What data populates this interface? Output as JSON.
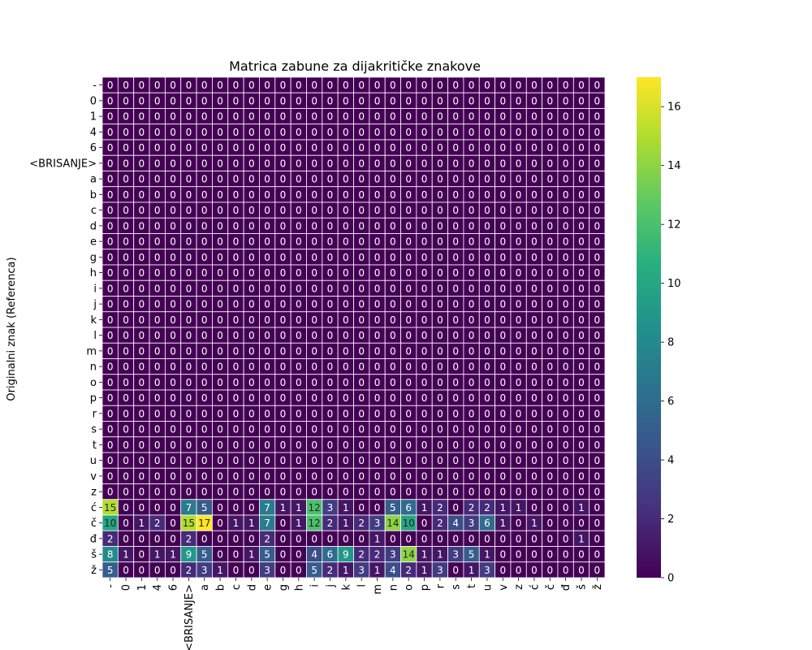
{
  "chart_data": {
    "type": "heatmap",
    "title": "Matrica zabune za dijakritičke znakove",
    "ylabel": "Originalni znak (Referenca)",
    "xlabel": "",
    "row_labels": [
      "-",
      "0",
      "1",
      "4",
      "6",
      "<BRISANJE>",
      "a",
      "b",
      "c",
      "d",
      "e",
      "g",
      "h",
      "i",
      "j",
      "k",
      "l",
      "m",
      "n",
      "o",
      "p",
      "r",
      "s",
      "t",
      "u",
      "v",
      "z",
      "ć",
      "č",
      "đ",
      "š",
      "ž"
    ],
    "col_labels": [
      "-",
      "0",
      "1",
      "4",
      "6",
      "<BRISANJE>",
      "a",
      "b",
      "c",
      "d",
      "e",
      "g",
      "h",
      "i",
      "j",
      "k",
      "l",
      "m",
      "n",
      "o",
      "p",
      "r",
      "s",
      "t",
      "u",
      "v",
      "z",
      "ć",
      "č",
      "đ",
      "š",
      "ž"
    ],
    "matrix": [
      [
        0,
        0,
        0,
        0,
        0,
        0,
        0,
        0,
        0,
        0,
        0,
        0,
        0,
        0,
        0,
        0,
        0,
        0,
        0,
        0,
        0,
        0,
        0,
        0,
        0,
        0,
        0,
        0,
        0,
        0,
        0,
        0
      ],
      [
        0,
        0,
        0,
        0,
        0,
        0,
        0,
        0,
        0,
        0,
        0,
        0,
        0,
        0,
        0,
        0,
        0,
        0,
        0,
        0,
        0,
        0,
        0,
        0,
        0,
        0,
        0,
        0,
        0,
        0,
        0,
        0
      ],
      [
        0,
        0,
        0,
        0,
        0,
        0,
        0,
        0,
        0,
        0,
        0,
        0,
        0,
        0,
        0,
        0,
        0,
        0,
        0,
        0,
        0,
        0,
        0,
        0,
        0,
        0,
        0,
        0,
        0,
        0,
        0,
        0
      ],
      [
        0,
        0,
        0,
        0,
        0,
        0,
        0,
        0,
        0,
        0,
        0,
        0,
        0,
        0,
        0,
        0,
        0,
        0,
        0,
        0,
        0,
        0,
        0,
        0,
        0,
        0,
        0,
        0,
        0,
        0,
        0,
        0
      ],
      [
        0,
        0,
        0,
        0,
        0,
        0,
        0,
        0,
        0,
        0,
        0,
        0,
        0,
        0,
        0,
        0,
        0,
        0,
        0,
        0,
        0,
        0,
        0,
        0,
        0,
        0,
        0,
        0,
        0,
        0,
        0,
        0
      ],
      [
        0,
        0,
        0,
        0,
        0,
        0,
        0,
        0,
        0,
        0,
        0,
        0,
        0,
        0,
        0,
        0,
        0,
        0,
        0,
        0,
        0,
        0,
        0,
        0,
        0,
        0,
        0,
        0,
        0,
        0,
        0,
        0
      ],
      [
        0,
        0,
        0,
        0,
        0,
        0,
        0,
        0,
        0,
        0,
        0,
        0,
        0,
        0,
        0,
        0,
        0,
        0,
        0,
        0,
        0,
        0,
        0,
        0,
        0,
        0,
        0,
        0,
        0,
        0,
        0,
        0
      ],
      [
        0,
        0,
        0,
        0,
        0,
        0,
        0,
        0,
        0,
        0,
        0,
        0,
        0,
        0,
        0,
        0,
        0,
        0,
        0,
        0,
        0,
        0,
        0,
        0,
        0,
        0,
        0,
        0,
        0,
        0,
        0,
        0
      ],
      [
        0,
        0,
        0,
        0,
        0,
        0,
        0,
        0,
        0,
        0,
        0,
        0,
        0,
        0,
        0,
        0,
        0,
        0,
        0,
        0,
        0,
        0,
        0,
        0,
        0,
        0,
        0,
        0,
        0,
        0,
        0,
        0
      ],
      [
        0,
        0,
        0,
        0,
        0,
        0,
        0,
        0,
        0,
        0,
        0,
        0,
        0,
        0,
        0,
        0,
        0,
        0,
        0,
        0,
        0,
        0,
        0,
        0,
        0,
        0,
        0,
        0,
        0,
        0,
        0,
        0
      ],
      [
        0,
        0,
        0,
        0,
        0,
        0,
        0,
        0,
        0,
        0,
        0,
        0,
        0,
        0,
        0,
        0,
        0,
        0,
        0,
        0,
        0,
        0,
        0,
        0,
        0,
        0,
        0,
        0,
        0,
        0,
        0,
        0
      ],
      [
        0,
        0,
        0,
        0,
        0,
        0,
        0,
        0,
        0,
        0,
        0,
        0,
        0,
        0,
        0,
        0,
        0,
        0,
        0,
        0,
        0,
        0,
        0,
        0,
        0,
        0,
        0,
        0,
        0,
        0,
        0,
        0
      ],
      [
        0,
        0,
        0,
        0,
        0,
        0,
        0,
        0,
        0,
        0,
        0,
        0,
        0,
        0,
        0,
        0,
        0,
        0,
        0,
        0,
        0,
        0,
        0,
        0,
        0,
        0,
        0,
        0,
        0,
        0,
        0,
        0
      ],
      [
        0,
        0,
        0,
        0,
        0,
        0,
        0,
        0,
        0,
        0,
        0,
        0,
        0,
        0,
        0,
        0,
        0,
        0,
        0,
        0,
        0,
        0,
        0,
        0,
        0,
        0,
        0,
        0,
        0,
        0,
        0,
        0
      ],
      [
        0,
        0,
        0,
        0,
        0,
        0,
        0,
        0,
        0,
        0,
        0,
        0,
        0,
        0,
        0,
        0,
        0,
        0,
        0,
        0,
        0,
        0,
        0,
        0,
        0,
        0,
        0,
        0,
        0,
        0,
        0,
        0
      ],
      [
        0,
        0,
        0,
        0,
        0,
        0,
        0,
        0,
        0,
        0,
        0,
        0,
        0,
        0,
        0,
        0,
        0,
        0,
        0,
        0,
        0,
        0,
        0,
        0,
        0,
        0,
        0,
        0,
        0,
        0,
        0,
        0
      ],
      [
        0,
        0,
        0,
        0,
        0,
        0,
        0,
        0,
        0,
        0,
        0,
        0,
        0,
        0,
        0,
        0,
        0,
        0,
        0,
        0,
        0,
        0,
        0,
        0,
        0,
        0,
        0,
        0,
        0,
        0,
        0,
        0
      ],
      [
        0,
        0,
        0,
        0,
        0,
        0,
        0,
        0,
        0,
        0,
        0,
        0,
        0,
        0,
        0,
        0,
        0,
        0,
        0,
        0,
        0,
        0,
        0,
        0,
        0,
        0,
        0,
        0,
        0,
        0,
        0,
        0
      ],
      [
        0,
        0,
        0,
        0,
        0,
        0,
        0,
        0,
        0,
        0,
        0,
        0,
        0,
        0,
        0,
        0,
        0,
        0,
        0,
        0,
        0,
        0,
        0,
        0,
        0,
        0,
        0,
        0,
        0,
        0,
        0,
        0
      ],
      [
        0,
        0,
        0,
        0,
        0,
        0,
        0,
        0,
        0,
        0,
        0,
        0,
        0,
        0,
        0,
        0,
        0,
        0,
        0,
        0,
        0,
        0,
        0,
        0,
        0,
        0,
        0,
        0,
        0,
        0,
        0,
        0
      ],
      [
        0,
        0,
        0,
        0,
        0,
        0,
        0,
        0,
        0,
        0,
        0,
        0,
        0,
        0,
        0,
        0,
        0,
        0,
        0,
        0,
        0,
        0,
        0,
        0,
        0,
        0,
        0,
        0,
        0,
        0,
        0,
        0
      ],
      [
        0,
        0,
        0,
        0,
        0,
        0,
        0,
        0,
        0,
        0,
        0,
        0,
        0,
        0,
        0,
        0,
        0,
        0,
        0,
        0,
        0,
        0,
        0,
        0,
        0,
        0,
        0,
        0,
        0,
        0,
        0,
        0
      ],
      [
        0,
        0,
        0,
        0,
        0,
        0,
        0,
        0,
        0,
        0,
        0,
        0,
        0,
        0,
        0,
        0,
        0,
        0,
        0,
        0,
        0,
        0,
        0,
        0,
        0,
        0,
        0,
        0,
        0,
        0,
        0,
        0
      ],
      [
        0,
        0,
        0,
        0,
        0,
        0,
        0,
        0,
        0,
        0,
        0,
        0,
        0,
        0,
        0,
        0,
        0,
        0,
        0,
        0,
        0,
        0,
        0,
        0,
        0,
        0,
        0,
        0,
        0,
        0,
        0,
        0
      ],
      [
        0,
        0,
        0,
        0,
        0,
        0,
        0,
        0,
        0,
        0,
        0,
        0,
        0,
        0,
        0,
        0,
        0,
        0,
        0,
        0,
        0,
        0,
        0,
        0,
        0,
        0,
        0,
        0,
        0,
        0,
        0,
        0
      ],
      [
        0,
        0,
        0,
        0,
        0,
        0,
        0,
        0,
        0,
        0,
        0,
        0,
        0,
        0,
        0,
        0,
        0,
        0,
        0,
        0,
        0,
        0,
        0,
        0,
        0,
        0,
        0,
        0,
        0,
        0,
        0,
        0
      ],
      [
        0,
        0,
        0,
        0,
        0,
        0,
        0,
        0,
        0,
        0,
        0,
        0,
        0,
        0,
        0,
        0,
        0,
        0,
        0,
        0,
        0,
        0,
        0,
        0,
        0,
        0,
        0,
        0,
        0,
        0,
        0,
        0
      ],
      [
        15,
        0,
        0,
        0,
        0,
        7,
        5,
        0,
        0,
        0,
        7,
        1,
        1,
        12,
        3,
        1,
        0,
        0,
        5,
        6,
        1,
        2,
        0,
        2,
        2,
        1,
        1,
        0,
        0,
        0,
        1,
        0
      ],
      [
        10,
        0,
        1,
        2,
        0,
        15,
        17,
        0,
        1,
        1,
        7,
        0,
        1,
        12,
        2,
        1,
        2,
        3,
        14,
        10,
        0,
        2,
        4,
        3,
        6,
        1,
        0,
        1,
        0,
        0,
        0,
        0
      ],
      [
        2,
        0,
        0,
        0,
        0,
        2,
        0,
        0,
        0,
        0,
        2,
        0,
        0,
        0,
        0,
        0,
        0,
        1,
        0,
        0,
        0,
        0,
        0,
        0,
        0,
        0,
        0,
        0,
        0,
        0,
        1,
        0
      ],
      [
        8,
        1,
        0,
        1,
        1,
        9,
        5,
        0,
        0,
        1,
        5,
        0,
        0,
        4,
        6,
        9,
        2,
        2,
        3,
        14,
        1,
        1,
        3,
        5,
        1,
        0,
        0,
        0,
        0,
        0,
        0,
        0
      ],
      [
        5,
        0,
        0,
        0,
        0,
        2,
        3,
        1,
        0,
        0,
        3,
        0,
        0,
        5,
        2,
        1,
        3,
        1,
        4,
        2,
        1,
        3,
        0,
        1,
        3,
        0,
        0,
        0,
        0,
        0,
        0,
        0
      ]
    ],
    "vmin": 0,
    "vmax": 17,
    "colormap": "viridis",
    "colorbar_ticks": [
      0,
      2,
      4,
      6,
      8,
      10,
      12,
      14,
      16
    ]
  }
}
